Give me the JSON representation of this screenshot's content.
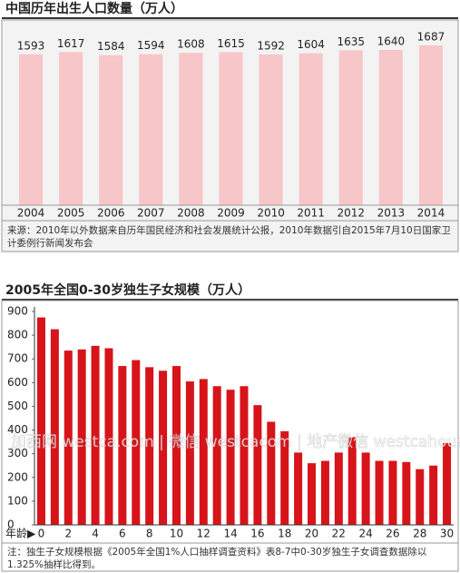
{
  "chart_data": [
    {
      "type": "bar",
      "title": "中国历年出生人口数量（万人）",
      "categories": [
        "2004",
        "2005",
        "2006",
        "2007",
        "2008",
        "2009",
        "2010",
        "2011",
        "2012",
        "2013",
        "2014"
      ],
      "values": [
        1593,
        1617,
        1584,
        1594,
        1608,
        1615,
        1592,
        1604,
        1635,
        1640,
        1687
      ],
      "color": "#f7c6c8",
      "note": "来源：2010年以外数据来自历年国民经济和社会发展统计公报，2010年数据引自2015年7月10日国家卫计委例行新闻发布会"
    },
    {
      "type": "bar",
      "title": "2005年全国0-30岁独生子女规模（万人）",
      "categories": [
        0,
        null,
        2,
        null,
        4,
        null,
        6,
        null,
        8,
        null,
        10,
        null,
        12,
        null,
        14,
        null,
        16,
        null,
        18,
        null,
        20,
        null,
        22,
        null,
        24,
        null,
        26,
        null,
        28,
        null,
        30
      ],
      "values": [
        875,
        825,
        735,
        740,
        755,
        745,
        670,
        695,
        665,
        650,
        670,
        605,
        615,
        585,
        570,
        585,
        505,
        435,
        395,
        305,
        260,
        270,
        305,
        370,
        305,
        270,
        270,
        265,
        235,
        250,
        345
      ],
      "color": "#d7141a",
      "ylim": [
        0,
        900
      ],
      "yticks": [
        0,
        100,
        200,
        300,
        400,
        500,
        600,
        700,
        800,
        900
      ],
      "xlabel": "年龄▶",
      "watermark": "加西网 westca.com | 微信 westcacom | 地产微信 westcahouse",
      "note": "注：独生子女规模根据《2005年全国1%人口抽样调查资料》表8-7中0-30岁独生子女调查数据除以1.325%抽样比得到。"
    }
  ]
}
